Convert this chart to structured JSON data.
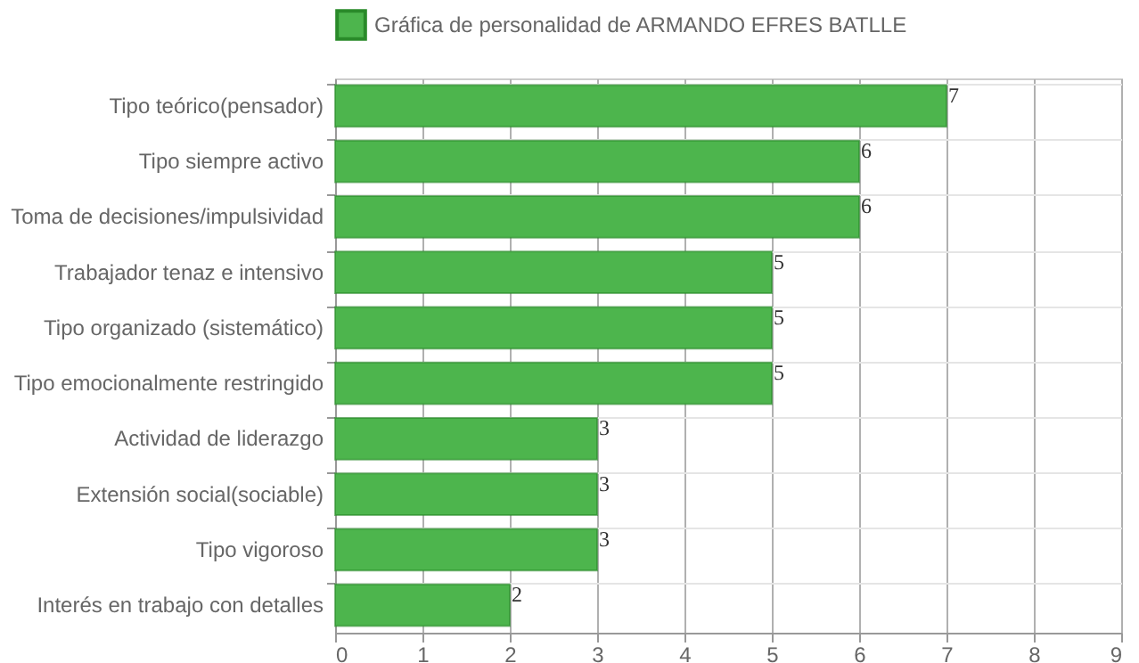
{
  "chart_data": {
    "type": "bar",
    "orientation": "horizontal",
    "categories": [
      "Tipo teórico(pensador)",
      "Tipo siempre activo",
      "Toma de decisiones/impulsividad",
      "Trabajador tenaz e intensivo",
      "Tipo organizado (sistemático)",
      "Tipo emocionalmente restringido",
      "Actividad de liderazgo",
      "Extensión social(sociable)",
      "Tipo vigoroso",
      "Interés en trabajo con detalles"
    ],
    "series": [
      {
        "name": "Gráfica de personalidad de ARMANDO EFRES BATLLE",
        "color": "#4db54d",
        "values": [
          7,
          6,
          6,
          5,
          5,
          5,
          3,
          3,
          3,
          2
        ]
      }
    ],
    "xlim": [
      0,
      9
    ],
    "xticks": [
      0,
      1,
      2,
      3,
      4,
      5,
      6,
      7,
      8,
      9
    ],
    "grid": true,
    "legend": "top",
    "data_labels": true
  }
}
